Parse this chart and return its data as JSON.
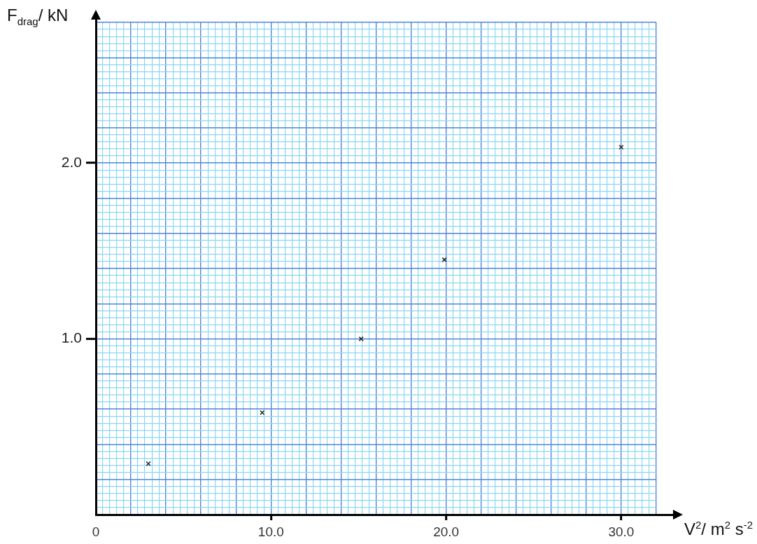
{
  "chart_data": {
    "type": "scatter",
    "xlabel": "V$^{2}$/ m$^{2}$ s$^{-2}$",
    "ylabel": "F$_{drag}$/ kN",
    "series": [
      {
        "color": "#222222",
        "x": [
          3.0,
          9.5,
          15.15,
          19.9,
          30.0
        ],
        "values": [
          0.29,
          0.58,
          1.0,
          1.45,
          2.09
        ]
      }
    ],
    "xlim": [
      0,
      32
    ],
    "ylim": [
      0,
      2.8
    ],
    "xticks": [
      0,
      {
        "value": 0.4,
        "label": null
      },
      {
        "value": 0.8,
        "label": null
      },
      {
        "value": 1.2,
        "label": null
      },
      {
        "value": 1.6,
        "label": null
      },
      {
        "value": 2,
        "label": null
      },
      {
        "value": 2.4,
        "label": null
      },
      {
        "value": 2.8,
        "label": null
      },
      {
        "value": 3.2,
        "label": null
      },
      {
        "value": 3.6,
        "label": null
      },
      {
        "value": 4,
        "label": null
      },
      {
        "value": 4.4,
        "label": null
      },
      {
        "value": 4.8,
        "label": null
      },
      {
        "value": 5.2,
        "label": null
      },
      {
        "value": 5.6,
        "label": null
      },
      {
        "value": 6,
        "label": null
      },
      {
        "value": 6.4,
        "label": null
      },
      {
        "value": 6.8,
        "label": null
      },
      {
        "value": 7.2,
        "label": null
      },
      {
        "value": 7.6,
        "label": null
      },
      {
        "value": 8,
        "label": null
      },
      {
        "value": 8.4,
        "label": null
      },
      {
        "value": 8.8,
        "label": null
      },
      {
        "value": 9.2,
        "label": null
      },
      {
        "value": 9.6,
        "label": null
      },
      {
        "value": 10,
        "label": "10.0"
      },
      {
        "value": 10.4,
        "label": null
      },
      {
        "value": 10.8,
        "label": null
      },
      {
        "value": 11.2,
        "label": null
      },
      {
        "value": 11.6,
        "label": null
      },
      {
        "value": 12,
        "label": null
      },
      {
        "value": 12.4,
        "label": null
      },
      {
        "value": 12.8,
        "label": null
      },
      {
        "value": 13.2,
        "label": null
      },
      {
        "value": 13.6,
        "label": null
      },
      {
        "value": 14,
        "label": null
      },
      {
        "value": 14.4,
        "label": null
      },
      {
        "value": 14.8,
        "label": null
      },
      {
        "value": 15.2,
        "label": null
      },
      {
        "value": 15.6,
        "label": null
      },
      {
        "value": 16,
        "label": null
      },
      {
        "value": 16.4,
        "label": null
      },
      {
        "value": 16.8,
        "label": null
      },
      {
        "value": 17.2,
        "label": null
      },
      {
        "value": 17.6,
        "label": null
      },
      {
        "value": 18,
        "label": null
      },
      {
        "value": 18.4,
        "label": null
      },
      {
        "value": 18.8,
        "label": null
      },
      {
        "value": 19.2,
        "label": null
      },
      {
        "value": 19.6,
        "label": null
      },
      {
        "value": 20,
        "label": "20.0"
      },
      {
        "value": 20.4,
        "label": null
      },
      {
        "value": 20.8,
        "label": null
      },
      {
        "value": 21.2,
        "label": null
      },
      {
        "value": 21.6,
        "label": null
      },
      {
        "value": 22,
        "label": null
      },
      {
        "value": 22.4,
        "label": null
      },
      {
        "value": 22.8,
        "label": null
      },
      {
        "value": 23.2,
        "label": null
      },
      {
        "value": 23.6,
        "label": null
      },
      {
        "value": 24,
        "label": null
      },
      {
        "value": 24.4,
        "label": null
      },
      {
        "value": 24.8,
        "label": null
      },
      {
        "value": 25.2,
        "label": null
      },
      {
        "value": 25.6,
        "label": null
      },
      {
        "value": 26,
        "label": null
      },
      {
        "value": 26.4,
        "label": null
      },
      {
        "value": 26.8,
        "label": null
      },
      {
        "value": 27.2,
        "label": null
      },
      {
        "value": 27.6,
        "label": null
      },
      {
        "value": 28,
        "label": null
      },
      {
        "value": 28.4,
        "label": null
      },
      {
        "value": 28.8,
        "label": null
      },
      {
        "value": 29.2,
        "label": null
      },
      {
        "value": 29.6,
        "label": null
      },
      {
        "value": 30,
        "label": "30.0"
      },
      {
        "value": 30.4,
        "label": null
      },
      {
        "value": 30.8,
        "label": null
      },
      {
        "value": 31.2,
        "label": null
      },
      {
        "value": 31.6,
        "label": null
      },
      {
        "value": 32,
        "label": null
      }
    ],
    "yticks": [
      {
        "value": 0,
        "label": null
      },
      {
        "value": 0.04,
        "label": null
      },
      {
        "value": 0.08,
        "label": null
      },
      {
        "value": 0.12,
        "label": null
      },
      {
        "value": 0.16,
        "label": null
      },
      {
        "value": 0.2,
        "label": null
      },
      {
        "value": 0.24,
        "label": null
      },
      {
        "value": 0.28,
        "label": null
      },
      {
        "value": 0.32,
        "label": null
      },
      {
        "value": 0.36,
        "label": null
      },
      {
        "value": 0.4,
        "label": null
      },
      {
        "value": 0.44,
        "label": null
      },
      {
        "value": 0.48,
        "label": null
      },
      {
        "value": 0.52,
        "label": null
      },
      {
        "value": 0.56,
        "label": null
      },
      {
        "value": 0.6,
        "label": null
      },
      {
        "value": 0.64,
        "label": null
      },
      {
        "value": 0.68,
        "label": null
      },
      {
        "value": 0.72,
        "label": null
      },
      {
        "value": 0.76,
        "label": null
      },
      {
        "value": 0.8,
        "label": null
      },
      {
        "value": 0.84,
        "label": null
      },
      {
        "value": 0.88,
        "label": null
      },
      {
        "value": 0.92,
        "label": null
      },
      {
        "value": 0.96,
        "label": null
      },
      {
        "value": 1,
        "label": "1.0"
      },
      {
        "value": 1.04,
        "label": null
      },
      {
        "value": 1.08,
        "label": null
      },
      {
        "value": 1.12,
        "label": null
      },
      {
        "value": 1.16,
        "label": null
      },
      {
        "value": 1.2,
        "label": null
      },
      {
        "value": 1.24,
        "label": null
      },
      {
        "value": 1.28,
        "label": null
      },
      {
        "value": 1.32,
        "label": null
      },
      {
        "value": 1.36,
        "label": null
      },
      {
        "value": 1.4,
        "label": null
      },
      {
        "value": 1.44,
        "label": null
      },
      {
        "value": 1.48,
        "label": null
      },
      {
        "value": 1.52,
        "label": null
      },
      {
        "value": 1.56,
        "label": null
      },
      {
        "value": 1.6,
        "label": null
      },
      {
        "value": 1.64,
        "label": null
      },
      {
        "value": 1.68,
        "label": null
      },
      {
        "value": 1.72,
        "label": null
      },
      {
        "value": 1.76,
        "label": null
      },
      {
        "value": 1.8,
        "label": null
      },
      {
        "value": 1.84,
        "label": null
      },
      {
        "value": 1.88,
        "label": null
      },
      {
        "value": 1.92,
        "label": null
      },
      {
        "value": 1.96,
        "label": null
      },
      {
        "value": 2,
        "label": "2.0"
      },
      {
        "value": 2.04,
        "label": null
      },
      {
        "value": 2.08,
        "label": null
      },
      {
        "value": 2.12,
        "label": null
      },
      {
        "value": 2.16,
        "label": null
      },
      {
        "value": 2.2,
        "label": null
      },
      {
        "value": 2.24,
        "label": null
      },
      {
        "value": 2.28,
        "label": null
      },
      {
        "value": 2.32,
        "label": null
      },
      {
        "value": 2.36,
        "label": null
      },
      {
        "value": 2.4,
        "label": null
      },
      {
        "value": 2.44,
        "label": null
      },
      {
        "value": 2.48,
        "label": null
      },
      {
        "value": 2.52,
        "label": null
      },
      {
        "value": 2.56,
        "label": null
      },
      {
        "value": 2.6,
        "label": null
      },
      {
        "value": 2.64,
        "label": null
      },
      {
        "value": 2.68,
        "label": null
      },
      {
        "value": 2.72,
        "label": null
      },
      {
        "value": 2.76,
        "label": null
      },
      {
        "value": 2.8,
        "label": null
      }
    ],
    "grid": true,
    "marker": "cross",
    "legend": false
  }
}
